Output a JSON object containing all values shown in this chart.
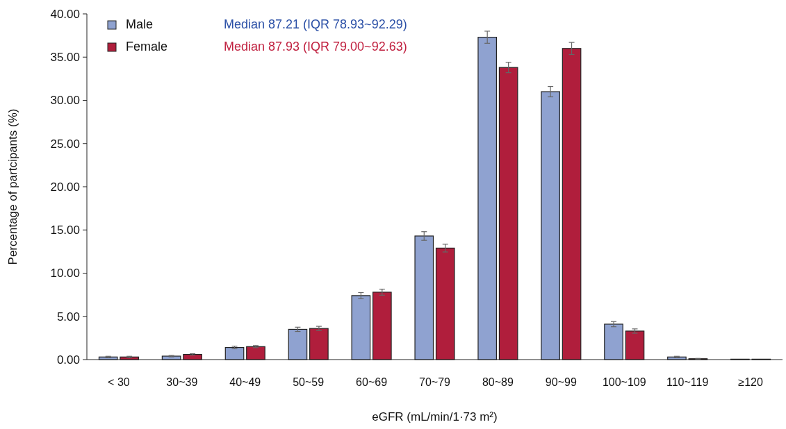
{
  "chart_data": {
    "type": "bar",
    "xlabel": "eGFR (mL/min/1·73 m²)",
    "ylabel": "Percentage of partcipants (%)",
    "categories": [
      "< 30",
      "30~39",
      "40~49",
      "50~59",
      "60~69",
      "70~79",
      "80~89",
      "90~99",
      "100~109",
      "110~119",
      "≥120"
    ],
    "series": [
      {
        "name": "Male",
        "color": "#8fa2d0",
        "values": [
          0.3,
          0.4,
          1.4,
          3.5,
          7.4,
          14.3,
          37.3,
          31.0,
          4.1,
          0.3,
          0.05
        ],
        "errors": [
          0.08,
          0.08,
          0.15,
          0.25,
          0.35,
          0.5,
          0.7,
          0.6,
          0.3,
          0.08,
          null
        ]
      },
      {
        "name": "Female",
        "color": "#b01e3c",
        "values": [
          0.3,
          0.6,
          1.5,
          3.6,
          7.8,
          12.9,
          33.8,
          36.0,
          3.3,
          0.1,
          0.05
        ],
        "errors": [
          0.08,
          0.08,
          0.12,
          0.25,
          0.35,
          0.45,
          0.6,
          0.7,
          0.25,
          0.04,
          null
        ]
      }
    ],
    "annotations": [
      "Median 87.21 (IQR 78.93~92.29)",
      "Median 87.93 (IQR 79.00~92.63)"
    ],
    "ylim": [
      0,
      40
    ],
    "yticks": [
      {
        "value": 0,
        "label": "0.00"
      },
      {
        "value": 5,
        "label": "5.00"
      },
      {
        "value": 10,
        "label": "10.00"
      },
      {
        "value": 15,
        "label": "15.00"
      },
      {
        "value": 20,
        "label": "20.00"
      },
      {
        "value": 25,
        "label": "25.00"
      },
      {
        "value": 30,
        "label": "30.00"
      },
      {
        "value": 35,
        "label": "35.00"
      },
      {
        "value": 40,
        "label": "40.00"
      }
    ],
    "grid": false,
    "legend": "top left"
  }
}
